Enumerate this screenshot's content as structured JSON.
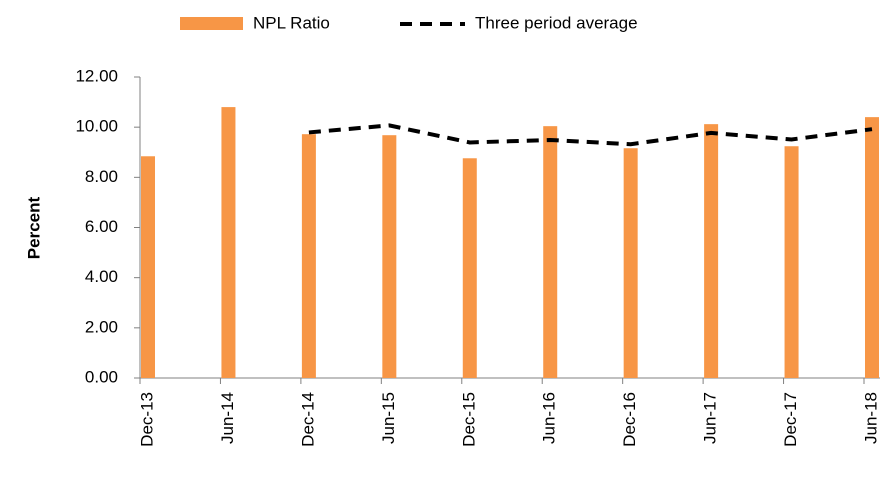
{
  "chart_data": {
    "type": "bar",
    "y_label": "Percent",
    "categories": [
      "Dec-13",
      "Jun-14",
      "Dec-14",
      "Jun-15",
      "Dec-15",
      "Jun-16",
      "Dec-16",
      "Jun-17",
      "Dec-17",
      "Jun-18"
    ],
    "series": [
      {
        "name": "NPL Ratio",
        "type": "bar",
        "color": "#f79646",
        "values": [
          8.84,
          10.8,
          9.72,
          9.68,
          8.76,
          10.04,
          9.16,
          10.12,
          9.24,
          10.4
        ]
      },
      {
        "name": "Three period average",
        "type": "line",
        "color": "#000000",
        "values": [
          null,
          null,
          9.79,
          10.07,
          9.39,
          9.49,
          9.32,
          9.77,
          9.51,
          9.92
        ]
      }
    ],
    "ylim": [
      0,
      12
    ],
    "yticks": [
      {
        "value": 0,
        "label": "0.00"
      },
      {
        "value": 2,
        "label": "2.00"
      },
      {
        "value": 4,
        "label": "4.00"
      },
      {
        "value": 6,
        "label": "6.00"
      },
      {
        "value": 8,
        "label": "8.00"
      },
      {
        "value": 10,
        "label": "10.00"
      },
      {
        "value": 12,
        "label": "12.00"
      }
    ],
    "grid": false
  }
}
